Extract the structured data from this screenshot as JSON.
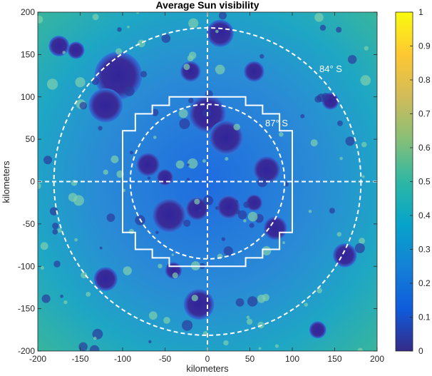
{
  "title": "Average Sun visibility",
  "xlabel": "kilometers",
  "ylabel": "kilometers",
  "x_ticks": [
    "-200",
    "-150",
    "-100",
    "-50",
    "0",
    "50",
    "100",
    "150",
    "200"
  ],
  "y_ticks": [
    "200",
    "150",
    "100",
    "50",
    "0",
    "-50",
    "-100",
    "-150",
    "-200"
  ],
  "colorbar_ticks": [
    "1",
    "0.9",
    "0.8",
    "0.7",
    "0.6",
    "0.5",
    "0.4",
    "0.3",
    "0.2",
    "0.1",
    "0"
  ],
  "annotations": {
    "outer_circle": "84° S",
    "inner_circle": "87° S"
  },
  "colormap": [
    "#352a87",
    "#0f5cdd",
    "#1481d6",
    "#06a4ca",
    "#2eb7a4",
    "#87bf77",
    "#d1bb59",
    "#fec832",
    "#f9fb0e"
  ],
  "map_data": {
    "extent_km": [
      -200,
      200
    ],
    "value_range": [
      0,
      1
    ],
    "overlays": {
      "outer_circle_latitude": "84° S",
      "inner_circle_latitude": "87° S",
      "stepped_outline_km": [
        [
          -45,
          100
        ],
        [
          45,
          100
        ],
        [
          45,
          90
        ],
        [
          65,
          90
        ],
        [
          65,
          80
        ],
        [
          85,
          80
        ],
        [
          85,
          60
        ],
        [
          100,
          60
        ],
        [
          100,
          45
        ],
        [
          100,
          -45
        ],
        [
          100,
          -60
        ],
        [
          85,
          -60
        ],
        [
          85,
          -80
        ],
        [
          65,
          -80
        ],
        [
          65,
          -90
        ],
        [
          45,
          -90
        ],
        [
          45,
          -100
        ],
        [
          -45,
          -100
        ],
        [
          -45,
          -90
        ],
        [
          -65,
          -90
        ],
        [
          -65,
          -80
        ],
        [
          -85,
          -80
        ],
        [
          -85,
          -60
        ],
        [
          -100,
          -60
        ],
        [
          -100,
          -45
        ],
        [
          -100,
          45
        ],
        [
          -100,
          60
        ],
        [
          -85,
          60
        ],
        [
          -85,
          80
        ],
        [
          -65,
          80
        ],
        [
          -65,
          90
        ],
        [
          -45,
          90
        ],
        [
          -45,
          100
        ]
      ]
    },
    "large_dark_craters_km": [
      [
        -105,
        125,
        28
      ],
      [
        -120,
        90,
        20
      ],
      [
        0,
        80,
        22
      ],
      [
        22,
        52,
        20
      ],
      [
        -70,
        20,
        14
      ],
      [
        -50,
        5,
        10
      ],
      [
        -45,
        -40,
        20
      ],
      [
        -12,
        -32,
        14
      ],
      [
        25,
        -30,
        14
      ],
      [
        55,
        -25,
        10
      ],
      [
        70,
        14,
        16
      ],
      [
        80,
        -55,
        14
      ],
      [
        -120,
        -115,
        14
      ],
      [
        -10,
        -145,
        18
      ],
      [
        162,
        -87,
        14
      ],
      [
        145,
        95,
        10
      ],
      [
        -40,
        -105,
        10
      ],
      [
        -175,
        160,
        12
      ],
      [
        -155,
        155,
        10
      ],
      [
        15,
        175,
        16
      ],
      [
        55,
        130,
        12
      ],
      [
        130,
        -175,
        10
      ],
      [
        -20,
        130,
        12
      ]
    ]
  }
}
